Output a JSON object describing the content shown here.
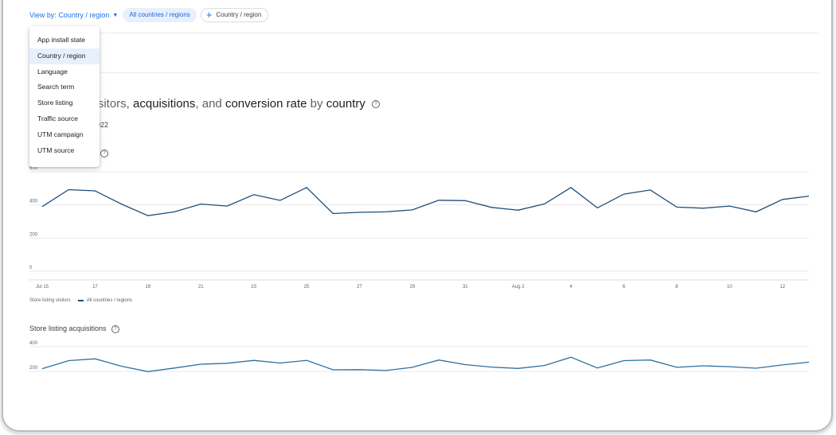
{
  "toolbar": {
    "view_by_label": "View by: Country / region",
    "active_chip": "All countries / regions",
    "add_chip": "Country / region"
  },
  "menu": {
    "items": [
      "App install state",
      "Country / region",
      "Language",
      "Search term",
      "Store listing",
      "Traffic source",
      "UTM campaign",
      "UTM source"
    ],
    "selected": "Country / region"
  },
  "chart_title": {
    "part1": "visitors, ",
    "part2": "acquisitions",
    "part3": ", and ",
    "part4": "conversion rate",
    "part5": " by ",
    "part6": "country"
  },
  "date_range": "2022",
  "chart_data": [
    {
      "type": "line",
      "ylim": [
        0,
        600
      ],
      "yticks": [
        0,
        200,
        400,
        600
      ],
      "x_ticks": [
        "Jul 15",
        "17",
        "19",
        "21",
        "23",
        "25",
        "27",
        "29",
        "31",
        "Aug 2",
        "4",
        "6",
        "8",
        "10",
        "12"
      ],
      "legend": {
        "metric": "Store listing visitors",
        "series": "All countries / regions"
      },
      "series": [
        {
          "name": "All countries / regions",
          "values": [
            390,
            492,
            485,
            405,
            335,
            358,
            405,
            393,
            462,
            427,
            505,
            348,
            355,
            358,
            370,
            428,
            426,
            385,
            368,
            406,
            505,
            382,
            465,
            490,
            387,
            380,
            393,
            358,
            433,
            453
          ]
        }
      ],
      "color": "#1e4e79"
    },
    {
      "type": "line",
      "title": "Store listing acquisitions",
      "ylim": [
        0,
        400
      ],
      "yticks": [
        200,
        400
      ],
      "series": [
        {
          "name": "All countries / regions",
          "values": [
            222,
            287,
            302,
            242,
            198,
            227,
            258,
            266,
            289,
            268,
            289,
            213,
            214,
            207,
            233,
            292,
            255,
            235,
            224,
            248,
            315,
            228,
            287,
            292,
            233,
            245,
            238,
            226,
            252,
            275
          ]
        }
      ],
      "color": "#2f6f9f"
    }
  ],
  "colors": {
    "accent": "#1a73e8",
    "line_dark": "#1e4e79",
    "line_mid": "#2f6f9f"
  },
  "icons": {
    "dropdown": "caret-down-icon",
    "add": "plus-icon",
    "help": "help-circle-icon"
  }
}
